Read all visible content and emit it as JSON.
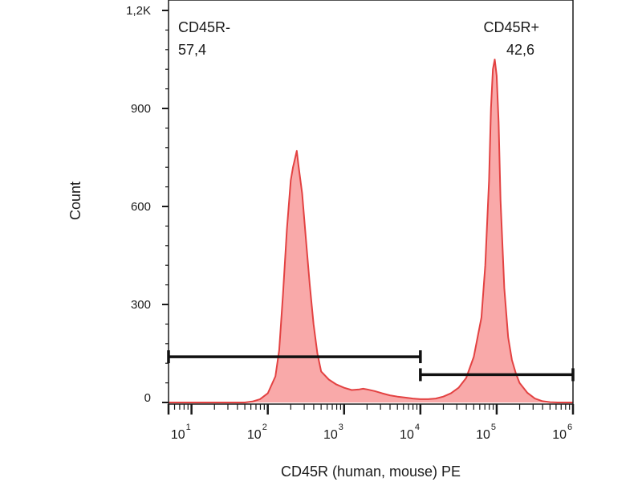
{
  "chart_data": {
    "type": "area",
    "title": "",
    "xlabel": "CD45R (human, mouse) PE",
    "ylabel": "Count",
    "x_scale": "log",
    "xlim": [
      5,
      1000000
    ],
    "ylim": [
      0,
      1200
    ],
    "x_ticks": [
      {
        "base": "10",
        "exp": "1",
        "value": 10
      },
      {
        "base": "10",
        "exp": "2",
        "value": 100
      },
      {
        "base": "10",
        "exp": "3",
        "value": 1000
      },
      {
        "base": "10",
        "exp": "4",
        "value": 10000
      },
      {
        "base": "10",
        "exp": "5",
        "value": 100000
      },
      {
        "base": "10",
        "exp": "6",
        "value": 1000000
      }
    ],
    "y_ticks": [
      {
        "label": "0",
        "value": 0
      },
      {
        "label": "300",
        "value": 300
      },
      {
        "label": "600",
        "value": 600
      },
      {
        "label": "900",
        "value": 900
      },
      {
        "label": "1,2K",
        "value": 1200
      }
    ],
    "grid": false,
    "series": [
      {
        "fill_color": "#f9a9a9",
        "line_color": "#e34242",
        "x": [
          5,
          50,
          63,
          79,
          100,
          126,
          141,
          158,
          178,
          200,
          214,
          224,
          240,
          251,
          282,
          316,
          355,
          398,
          447,
          501,
          631,
          794,
          1000,
          1259,
          1585,
          1778,
          1995,
          2512,
          3162,
          3981,
          5012,
          6310,
          7943,
          10000,
          12589,
          15849,
          19953,
          25119,
          31623,
          39811,
          50119,
          63096,
          70795,
          79433,
          84140,
          89125,
          94406,
          100000,
          105925,
          112202,
          125893,
          141254,
          158489,
          177828,
          199526,
          251189,
          316228,
          398107,
          501187,
          630957,
          794328,
          1000000
        ],
        "y": [
          0,
          0,
          3,
          10,
          28,
          80,
          160,
          330,
          530,
          680,
          720,
          740,
          770,
          730,
          640,
          500,
          360,
          240,
          150,
          95,
          70,
          55,
          45,
          38,
          40,
          42,
          40,
          35,
          28,
          22,
          18,
          15,
          12,
          10,
          10,
          12,
          18,
          28,
          45,
          75,
          140,
          260,
          420,
          680,
          900,
          1020,
          1050,
          1000,
          860,
          620,
          350,
          200,
          130,
          90,
          60,
          30,
          12,
          4,
          1,
          0,
          0,
          0
        ]
      }
    ],
    "gates": [
      {
        "name": "CD45R-",
        "percent": "57,4",
        "x_range": [
          5,
          10000
        ],
        "y_level": 140
      },
      {
        "name": "CD45R+",
        "percent": "42,6",
        "x_range": [
          10000,
          1000000
        ],
        "y_level": 85
      }
    ]
  }
}
